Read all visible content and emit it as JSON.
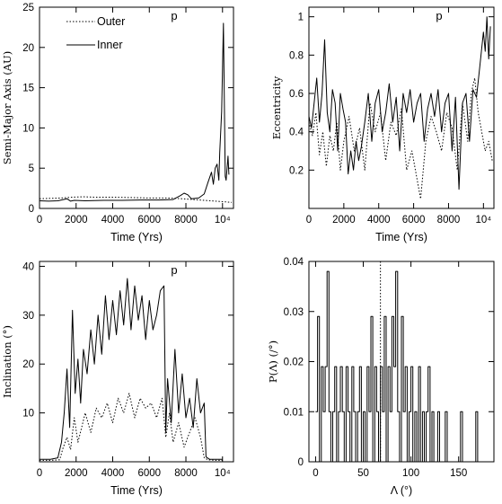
{
  "colors": {
    "line": "#000000",
    "background": "#ffffff"
  },
  "chart_data": [
    {
      "type": "line",
      "panel_tag": "p",
      "xlabel": "Time (Yrs)",
      "ylabel": "Semi-Major Axis (AU)",
      "xlim": [
        0,
        10600
      ],
      "ylim": [
        0,
        25
      ],
      "x_ticks": [
        0,
        2000,
        4000,
        6000,
        8000,
        10000
      ],
      "x_tick_labels": [
        "0",
        "2000",
        "4000",
        "6000",
        "8000",
        "10⁴"
      ],
      "y_ticks": [
        0,
        5,
        10,
        15,
        20,
        25
      ],
      "y_tick_labels": [
        "0",
        "5",
        "10",
        "15",
        "20",
        "25"
      ],
      "legend": {
        "position": "top-left",
        "entries": [
          "Outer",
          "Inner"
        ]
      },
      "series": [
        {
          "name": "Outer",
          "style": "dotted",
          "x": [
            0,
            600,
            1200,
            1800,
            2400,
            3000,
            4000,
            5000,
            6000,
            7000,
            7800,
            8400,
            9000,
            9600,
            10200,
            10500
          ],
          "y": [
            1.2,
            1.25,
            1.3,
            1.4,
            1.45,
            1.4,
            1.4,
            1.35,
            1.3,
            1.3,
            1.2,
            1.1,
            1.0,
            0.9,
            0.8,
            0.75
          ]
        },
        {
          "name": "Inner",
          "style": "solid",
          "x": [
            0,
            500,
            1000,
            1500,
            1700,
            1900,
            2500,
            3500,
            4500,
            5500,
            6500,
            7300,
            7700,
            7900,
            8100,
            8300,
            8700,
            9000,
            9200,
            9400,
            9500,
            9600,
            9700,
            9800,
            9850,
            9950,
            10050,
            10150,
            10200,
            10300,
            10350
          ],
          "y": [
            0.95,
            0.9,
            0.95,
            1.2,
            0.9,
            1.0,
            0.95,
            1.0,
            1.0,
            1.05,
            1.05,
            1.1,
            1.6,
            1.9,
            1.7,
            1.2,
            1.3,
            1.8,
            3.2,
            4.5,
            3.0,
            5.0,
            5.5,
            3.5,
            7.0,
            12.0,
            23.0,
            4.0,
            3.5,
            6.5,
            4.2
          ]
        }
      ]
    },
    {
      "type": "line",
      "panel_tag": "p",
      "xlabel": "Time (Yrs)",
      "ylabel": "Eccentricity",
      "xlim": [
        0,
        10600
      ],
      "ylim": [
        0,
        1.05
      ],
      "x_ticks": [
        0,
        2000,
        4000,
        6000,
        8000,
        10000
      ],
      "x_tick_labels": [
        "0",
        "2000",
        "4000",
        "6000",
        "8000",
        "10⁴"
      ],
      "y_ticks": [
        0.2,
        0.4,
        0.6,
        0.8,
        1.0
      ],
      "y_tick_labels": [
        "0.2",
        "0.4",
        "0.6",
        "0.8",
        "1"
      ],
      "series": [
        {
          "name": "Outer",
          "style": "dotted",
          "x": [
            0,
            200,
            400,
            600,
            800,
            1000,
            1200,
            1400,
            1600,
            1800,
            2000,
            2300,
            2600,
            2900,
            3200,
            3500,
            3800,
            4100,
            4400,
            4700,
            5000,
            5300,
            5600,
            5900,
            6200,
            6400,
            6700,
            7000,
            7300,
            7600,
            7900,
            8200,
            8500,
            8800,
            9100,
            9300,
            9500,
            9700,
            9900,
            10100,
            10300,
            10500
          ],
          "y": [
            0.45,
            0.38,
            0.5,
            0.28,
            0.4,
            0.22,
            0.38,
            0.3,
            0.45,
            0.2,
            0.35,
            0.48,
            0.3,
            0.42,
            0.2,
            0.55,
            0.4,
            0.5,
            0.25,
            0.45,
            0.38,
            0.52,
            0.2,
            0.3,
            0.15,
            0.05,
            0.35,
            0.48,
            0.4,
            0.3,
            0.5,
            0.42,
            0.2,
            0.55,
            0.35,
            0.6,
            0.68,
            0.5,
            0.4,
            0.3,
            0.35,
            0.25
          ]
        },
        {
          "name": "Inner",
          "style": "solid",
          "x": [
            0,
            150,
            300,
            450,
            600,
            750,
            900,
            1050,
            1200,
            1350,
            1500,
            1650,
            1800,
            1950,
            2100,
            2250,
            2400,
            2550,
            2700,
            2850,
            3000,
            3200,
            3400,
            3600,
            3800,
            4000,
            4200,
            4400,
            4600,
            4800,
            5000,
            5200,
            5400,
            5600,
            5800,
            6000,
            6200,
            6400,
            6600,
            6800,
            7000,
            7200,
            7400,
            7600,
            7800,
            8000,
            8200,
            8400,
            8600,
            8800,
            9000,
            9200,
            9400,
            9600,
            9800,
            10000,
            10100,
            10200,
            10300,
            10400
          ],
          "y": [
            0.48,
            0.42,
            0.55,
            0.68,
            0.45,
            0.6,
            0.88,
            0.5,
            0.4,
            0.62,
            0.55,
            0.3,
            0.6,
            0.52,
            0.45,
            0.18,
            0.3,
            0.2,
            0.35,
            0.25,
            0.32,
            0.45,
            0.6,
            0.35,
            0.55,
            0.62,
            0.4,
            0.5,
            0.65,
            0.45,
            0.58,
            0.3,
            0.6,
            0.5,
            0.62,
            0.45,
            0.55,
            0.6,
            0.35,
            0.52,
            0.6,
            0.48,
            0.62,
            0.4,
            0.55,
            0.6,
            0.3,
            0.58,
            0.1,
            0.55,
            0.6,
            0.35,
            0.62,
            0.58,
            0.75,
            0.92,
            0.82,
            1.0,
            0.78,
            0.95
          ]
        }
      ]
    },
    {
      "type": "line",
      "panel_tag": "p",
      "xlabel": "Time (Yrs)",
      "ylabel": "Inclination (°)",
      "xlim": [
        0,
        10600
      ],
      "ylim": [
        0,
        41
      ],
      "x_ticks": [
        0,
        2000,
        4000,
        6000,
        8000,
        10000
      ],
      "x_tick_labels": [
        "0",
        "2000",
        "4000",
        "6000",
        "8000",
        "10⁴"
      ],
      "y_ticks": [
        10,
        20,
        30,
        40
      ],
      "y_tick_labels": [
        "10",
        "20",
        "30",
        "40"
      ],
      "series": [
        {
          "name": "Outer",
          "style": "dotted",
          "x": [
            0,
            600,
            1100,
            1300,
            1500,
            1700,
            1900,
            2100,
            2300,
            2500,
            2800,
            3100,
            3400,
            3700,
            4000,
            4300,
            4600,
            4900,
            5200,
            5500,
            5800,
            6100,
            6400,
            6700,
            6900,
            7100,
            7300,
            7600,
            7900,
            8200,
            8500,
            8800,
            9000,
            9200,
            9600,
            10000
          ],
          "y": [
            0.3,
            0.3,
            0.4,
            3.0,
            5.0,
            2.5,
            9.0,
            4.0,
            7.0,
            10.0,
            6.0,
            11.0,
            9.0,
            12.0,
            8.0,
            13.0,
            10.0,
            14.0,
            9.0,
            13.0,
            11.0,
            12.0,
            9.0,
            13.0,
            5.0,
            10.0,
            4.0,
            8.0,
            3.0,
            6.0,
            9.0,
            5.0,
            0.8,
            0.4,
            0.3,
            0.3
          ]
        },
        {
          "name": "Inner",
          "style": "solid",
          "x": [
            0,
            600,
            1000,
            1200,
            1350,
            1500,
            1650,
            1800,
            1950,
            2100,
            2250,
            2400,
            2600,
            2800,
            3000,
            3200,
            3400,
            3600,
            3800,
            4000,
            4200,
            4400,
            4600,
            4800,
            5000,
            5200,
            5400,
            5600,
            5800,
            6000,
            6200,
            6400,
            6600,
            6800,
            6900,
            7000,
            7200,
            7400,
            7600,
            7800,
            8000,
            8200,
            8400,
            8600,
            8800,
            9000,
            9100,
            9300,
            9600,
            10000
          ],
          "y": [
            0.5,
            0.5,
            0.8,
            4.0,
            10.0,
            19.0,
            7.0,
            31.0,
            14.0,
            21.0,
            12.0,
            23.0,
            18.0,
            27.0,
            20.0,
            30.0,
            22.0,
            34.0,
            25.0,
            33.0,
            26.0,
            35.0,
            28.0,
            37.5,
            27.0,
            36.0,
            29.0,
            34.0,
            25.0,
            33.0,
            27.0,
            30.0,
            35.0,
            36.0,
            6.0,
            17.0,
            8.0,
            23.0,
            10.0,
            18.0,
            9.0,
            13.0,
            7.0,
            17.0,
            10.0,
            12.0,
            1.0,
            0.5,
            0.5,
            0.5
          ]
        }
      ]
    },
    {
      "type": "line",
      "panel_tag": "",
      "xlabel": "Λ (°)",
      "ylabel": "P(Λ) (/°)",
      "xlim": [
        -7,
        187
      ],
      "ylim": [
        0,
        0.04
      ],
      "x_ticks": [
        0,
        50,
        100,
        150
      ],
      "x_tick_labels": [
        "0",
        "50",
        "100",
        "150"
      ],
      "y_ticks": [
        0,
        0.01,
        0.02,
        0.03,
        0.04
      ],
      "y_tick_labels": [
        "0",
        "0.01",
        "0.02",
        "0.03",
        "0.04"
      ],
      "marker_line": {
        "x": 68,
        "style": "dotted"
      },
      "series": [
        {
          "name": "Inner",
          "style": "solid-step",
          "x": [
            0,
            2,
            4,
            6,
            8,
            10,
            12,
            14,
            16,
            18,
            20,
            22,
            24,
            26,
            28,
            30,
            32,
            34,
            36,
            38,
            40,
            42,
            44,
            46,
            48,
            50,
            52,
            54,
            56,
            58,
            60,
            62,
            64,
            66,
            68,
            70,
            72,
            74,
            76,
            78,
            80,
            82,
            84,
            86,
            88,
            90,
            92,
            94,
            96,
            98,
            100,
            102,
            104,
            106,
            108,
            110,
            112,
            114,
            116,
            118,
            120,
            122,
            124,
            126,
            128,
            130,
            132,
            134,
            136,
            138,
            140,
            142,
            144,
            146,
            148,
            150,
            152,
            154,
            156,
            158,
            160,
            162,
            164,
            166,
            168,
            170,
            172,
            174,
            176,
            178,
            180
          ],
          "y": [
            0.01,
            0.029,
            0.0,
            0.019,
            0.01,
            0.019,
            0.038,
            0.01,
            0.0,
            0.01,
            0.019,
            0.0,
            0.01,
            0.019,
            0.01,
            0.0,
            0.019,
            0.01,
            0.0,
            0.019,
            0.01,
            0.0,
            0.01,
            0.019,
            0.0,
            0.01,
            0.0,
            0.019,
            0.01,
            0.029,
            0.0,
            0.019,
            0.01,
            0.0,
            0.019,
            0.01,
            0.029,
            0.0,
            0.019,
            0.01,
            0.029,
            0.019,
            0.038,
            0.01,
            0.0,
            0.029,
            0.01,
            0.019,
            0.0,
            0.01,
            0.019,
            0.0,
            0.01,
            0.0,
            0.019,
            0.0,
            0.01,
            0.0,
            0.01,
            0.019,
            0.0,
            0.01,
            0.0,
            0.0,
            0.01,
            0.0,
            0.0,
            0.0,
            0.01,
            0.0,
            0.0,
            0.0,
            0.0,
            0.0,
            0.0,
            0.0,
            0.01,
            0.0,
            0.0,
            0.0,
            0.0,
            0.0,
            0.0,
            0.0,
            0.01,
            0.0,
            0.0,
            0.0,
            0.0,
            0.0,
            0.0
          ]
        }
      ]
    }
  ]
}
